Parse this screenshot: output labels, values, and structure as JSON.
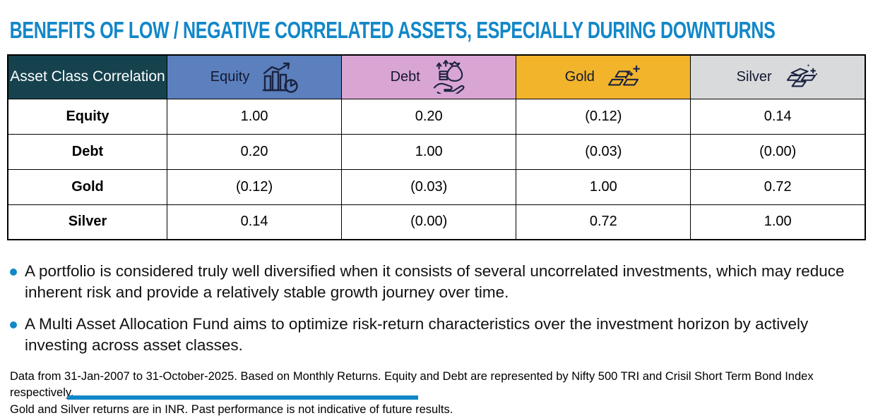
{
  "title": "BENEFITS OF LOW / NEGATIVE CORRELATED ASSETS, ESPECIALLY DURING DOWNTURNS",
  "colors": {
    "accent_blue": "#1287C8",
    "header_teal": "#16424E",
    "icon_ink": "#1C2340",
    "border": "#000000"
  },
  "table": {
    "corner_label": "Asset Class Correlation",
    "columns": [
      {
        "label": "Equity",
        "icon": "equity-bar-chart-icon",
        "bg": "#5B80BD"
      },
      {
        "label": "Debt",
        "icon": "debt-hand-money-icon",
        "bg": "#D9A6D3"
      },
      {
        "label": "Gold",
        "icon": "gold-bars-icon",
        "bg": "#F1B42B"
      },
      {
        "label": "Silver",
        "icon": "silver-bars-icon",
        "bg": "#D8DADC"
      }
    ],
    "rows": [
      {
        "label": "Equity",
        "values": [
          "1.00",
          "0.20",
          "(0.12)",
          "0.14"
        ]
      },
      {
        "label": "Debt",
        "values": [
          "0.20",
          "1.00",
          "(0.03)",
          "(0.00)"
        ]
      },
      {
        "label": "Gold",
        "values": [
          "(0.12)",
          "(0.03)",
          "1.00",
          "0.72"
        ]
      },
      {
        "label": "Silver",
        "values": [
          "0.14",
          "(0.00)",
          "0.72",
          "1.00"
        ]
      }
    ]
  },
  "chart_data": {
    "type": "table",
    "title": "Asset Class Correlation",
    "categories": [
      "Equity",
      "Debt",
      "Gold",
      "Silver"
    ],
    "series": [
      {
        "name": "Equity",
        "values": [
          1.0,
          0.2,
          -0.12,
          0.14
        ]
      },
      {
        "name": "Debt",
        "values": [
          0.2,
          1.0,
          -0.03,
          0.0
        ]
      },
      {
        "name": "Gold",
        "values": [
          -0.12,
          -0.03,
          1.0,
          0.72
        ]
      },
      {
        "name": "Silver",
        "values": [
          0.14,
          0.0,
          0.72,
          1.0
        ]
      }
    ]
  },
  "bullets": [
    "A portfolio is considered truly well diversified when it consists of several uncorrelated investments, which may reduce inherent risk and provide a relatively stable growth journey over time.",
    "A Multi Asset Allocation Fund aims to optimize risk-return characteristics over the investment horizon by actively investing across asset classes."
  ],
  "footnote_lines": [
    "Data from 31-Jan-2007 to 31-October-2025. Based on Monthly Returns. Equity and Debt are represented by Nifty 500 TRI and Crisil Short Term Bond Index respectively.",
    "Gold and Silver returns are in INR. Past performance is not indicative of future results."
  ]
}
